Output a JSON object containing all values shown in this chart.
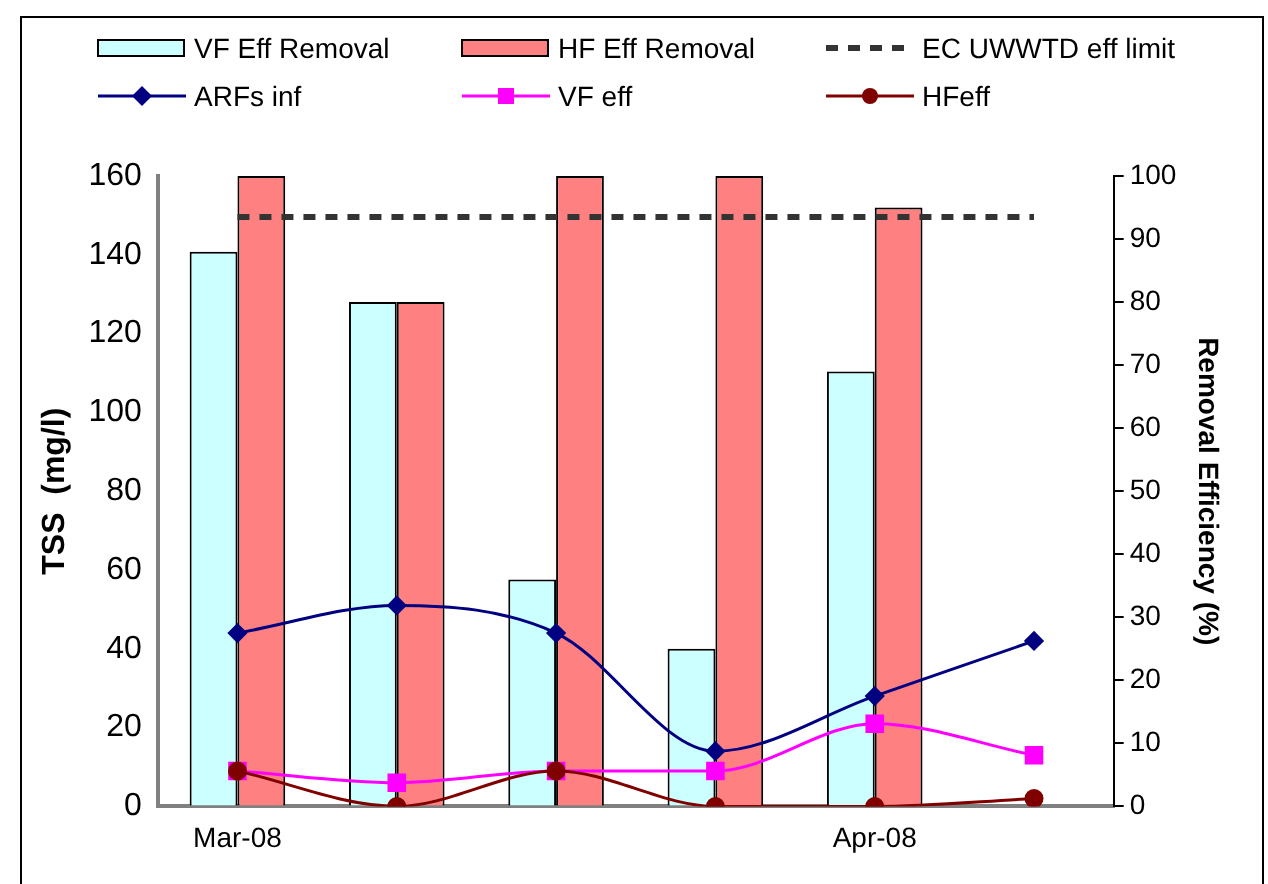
{
  "chart_data": {
    "type": "bar",
    "categories": [
      "Mar-08",
      null,
      null,
      null,
      "Apr-08",
      null
    ],
    "ylabel": "TSS  (mg/l)",
    "y2label": "Removal Efficiency (%)",
    "ylim": [
      0,
      160
    ],
    "yticks": [
      0,
      20,
      40,
      60,
      80,
      100,
      120,
      140,
      160
    ],
    "y2lim": [
      0,
      100
    ],
    "y2ticks": [
      0,
      10,
      20,
      30,
      40,
      50,
      60,
      70,
      80,
      90,
      100
    ],
    "series": [
      {
        "name": "VF Eff Removal",
        "axis": "y2",
        "color": "#ccffff",
        "values": [
          88,
          80,
          36,
          25,
          69,
          null
        ]
      },
      {
        "name": "HF Eff Removal",
        "axis": "y2",
        "color": "#ff8080",
        "values": [
          100,
          80,
          100,
          100,
          95,
          null
        ]
      },
      {
        "name": "ARFs inf",
        "type": "line",
        "color": "#000080",
        "marker": "diamond",
        "values": [
          44,
          51,
          44,
          14,
          28,
          42
        ]
      },
      {
        "name": "VF eff",
        "type": "line",
        "color": "#ff00ff",
        "marker": "square",
        "values": [
          9,
          6,
          9,
          9,
          21,
          13
        ]
      },
      {
        "name": "HFeff",
        "type": "line",
        "color": "#800000",
        "marker": "circle",
        "values": [
          9,
          0,
          9,
          0,
          0,
          2
        ]
      }
    ],
    "ref_lines": [
      {
        "axis": "y2",
        "value": 93.5,
        "label": "EC UWWTD eff limit",
        "color": "#333333",
        "line_style": "dashed"
      }
    ],
    "legend": "top",
    "grid": false
  }
}
